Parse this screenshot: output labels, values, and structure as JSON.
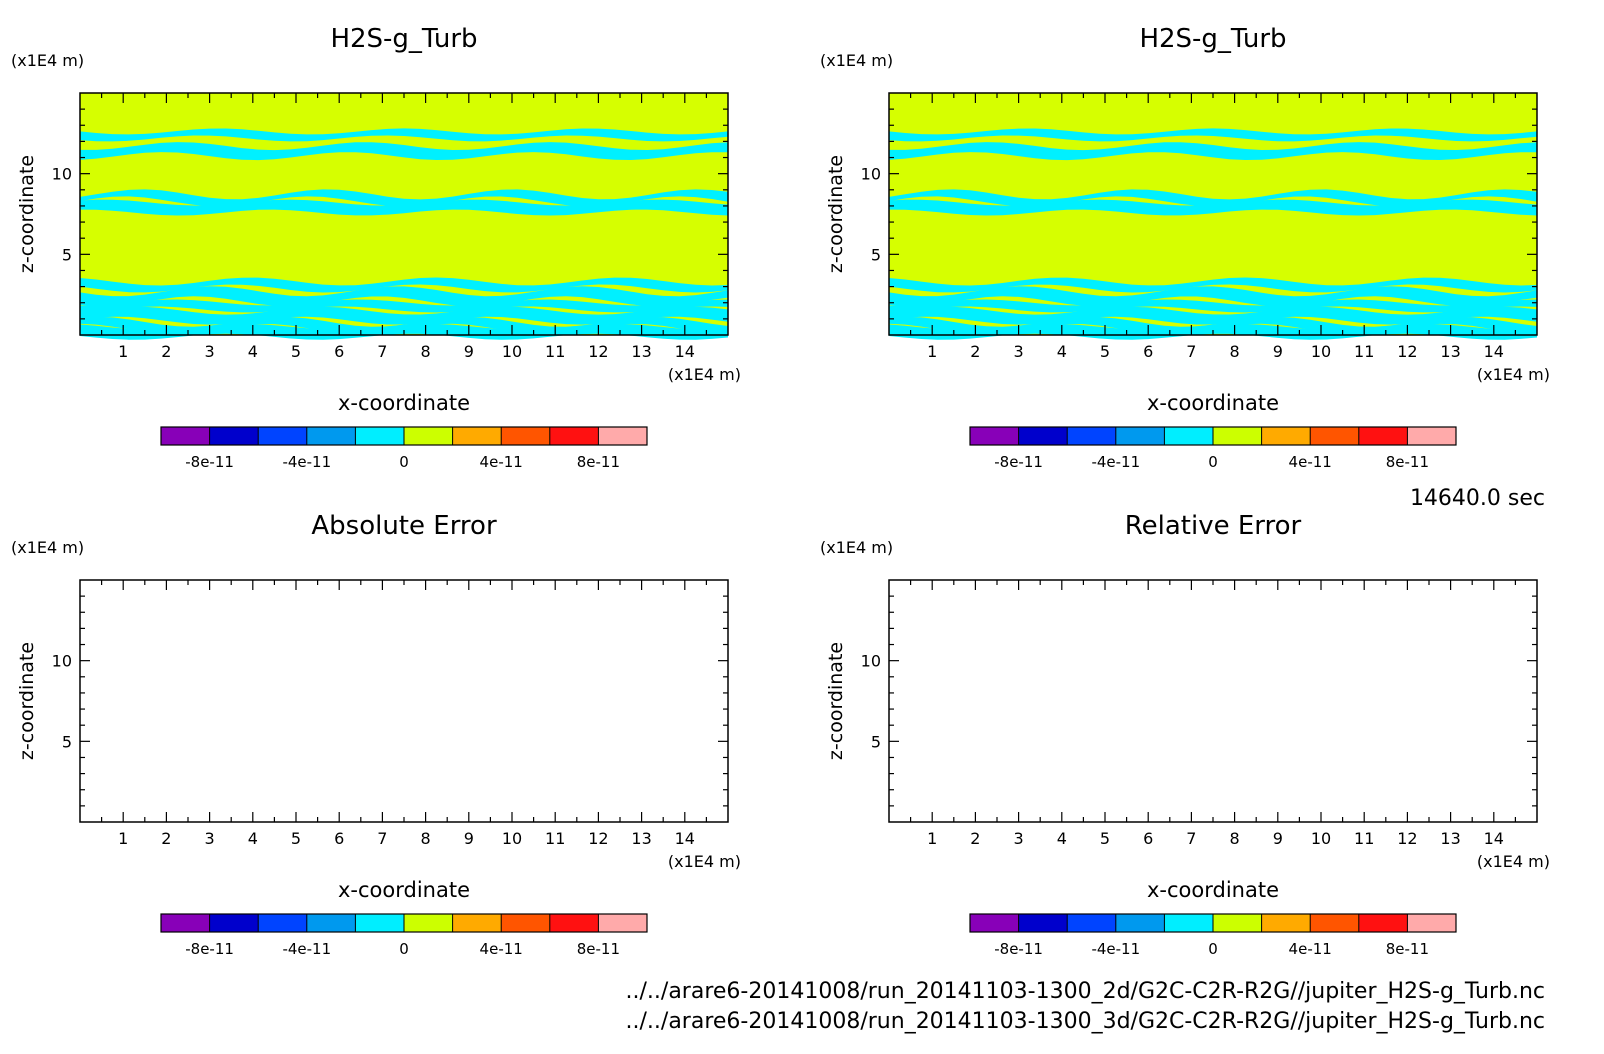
{
  "time_label": "14640.0 sec",
  "file_paths": [
    "../../arare6-20141008/run_20141103-1300_2d/G2C-C2R-R2G//jupiter_H2S-g_Turb.nc",
    "../../arare6-20141008/run_20141103-1300_3d/G2C-C2R-R2G//jupiter_H2S-g_Turb.nc"
  ],
  "colors": {
    "background_field": "#d6ff00",
    "band": "#00f0ff",
    "frame": "#000000"
  },
  "colorbar": {
    "colors": [
      "#8800b8",
      "#0000cc",
      "#0044ff",
      "#0099ee",
      "#00eeff",
      "#ccff00",
      "#ffaa00",
      "#ff5500",
      "#ff1111",
      "#ffaaaa"
    ],
    "tick_labels": [
      "-8e-11",
      "-4e-11",
      "0",
      "4e-11",
      "8e-11"
    ]
  },
  "chart_data": [
    {
      "type": "heatmap",
      "panel": "top-left",
      "title": "H2S-g_Turb",
      "xlabel": "x-coordinate",
      "ylabel": "z-coordinate",
      "x_unit": "(x1E4 m)",
      "z_unit": "(x1E4 m)",
      "xlim": [
        0,
        15
      ],
      "ylim": [
        0,
        15
      ],
      "x_ticks": [
        "1",
        "2",
        "3",
        "4",
        "5",
        "6",
        "7",
        "8",
        "9",
        "10",
        "11",
        "12",
        "13",
        "14"
      ],
      "y_ticks": [
        "5",
        "10"
      ],
      "field_value": 0,
      "bands": [
        {
          "z": 12.4,
          "value": -0.1
        },
        {
          "z": 11.4,
          "value": -0.1
        },
        {
          "z": 8.5,
          "value": -0.1
        },
        {
          "z": 7.9,
          "value": -0.1
        },
        {
          "z": 3.1,
          "value": -0.1
        },
        {
          "z": 2.4,
          "value": -0.1
        },
        {
          "z": 1.8,
          "value": -0.1
        },
        {
          "z": 1.2,
          "value": -0.1
        },
        {
          "z": 0.6,
          "value": -0.1
        },
        {
          "z": 0.2,
          "value": -0.1
        }
      ]
    },
    {
      "type": "heatmap",
      "panel": "top-right",
      "title": "H2S-g_Turb",
      "xlabel": "x-coordinate",
      "ylabel": "z-coordinate",
      "x_unit": "(x1E4 m)",
      "z_unit": "(x1E4 m)",
      "xlim": [
        0,
        15
      ],
      "ylim": [
        0,
        15
      ],
      "x_ticks": [
        "1",
        "2",
        "3",
        "4",
        "5",
        "6",
        "7",
        "8",
        "9",
        "10",
        "11",
        "12",
        "13",
        "14"
      ],
      "y_ticks": [
        "5",
        "10"
      ],
      "field_value": 0,
      "bands": [
        {
          "z": 12.4,
          "value": -0.1
        },
        {
          "z": 11.4,
          "value": -0.1
        },
        {
          "z": 8.5,
          "value": -0.1
        },
        {
          "z": 7.9,
          "value": -0.1
        },
        {
          "z": 3.1,
          "value": -0.1
        },
        {
          "z": 2.4,
          "value": -0.1
        },
        {
          "z": 1.8,
          "value": -0.1
        },
        {
          "z": 1.2,
          "value": -0.1
        },
        {
          "z": 0.6,
          "value": -0.1
        },
        {
          "z": 0.2,
          "value": -0.1
        }
      ]
    },
    {
      "type": "heatmap",
      "panel": "bottom-left",
      "title": "Absolute Error",
      "xlabel": "x-coordinate",
      "ylabel": "z-coordinate",
      "x_unit": "(x1E4 m)",
      "z_unit": "(x1E4 m)",
      "xlim": [
        0,
        15
      ],
      "ylim": [
        0,
        15
      ],
      "x_ticks": [
        "1",
        "2",
        "3",
        "4",
        "5",
        "6",
        "7",
        "8",
        "9",
        "10",
        "11",
        "12",
        "13",
        "14"
      ],
      "y_ticks": [
        "5",
        "10"
      ],
      "bands": []
    },
    {
      "type": "heatmap",
      "panel": "bottom-right",
      "title": "Relative Error",
      "xlabel": "x-coordinate",
      "ylabel": "z-coordinate",
      "x_unit": "(x1E4 m)",
      "z_unit": "(x1E4 m)",
      "xlim": [
        0,
        15
      ],
      "ylim": [
        0,
        15
      ],
      "x_ticks": [
        "1",
        "2",
        "3",
        "4",
        "5",
        "6",
        "7",
        "8",
        "9",
        "10",
        "11",
        "12",
        "13",
        "14"
      ],
      "y_ticks": [
        "5",
        "10"
      ],
      "bands": []
    }
  ]
}
